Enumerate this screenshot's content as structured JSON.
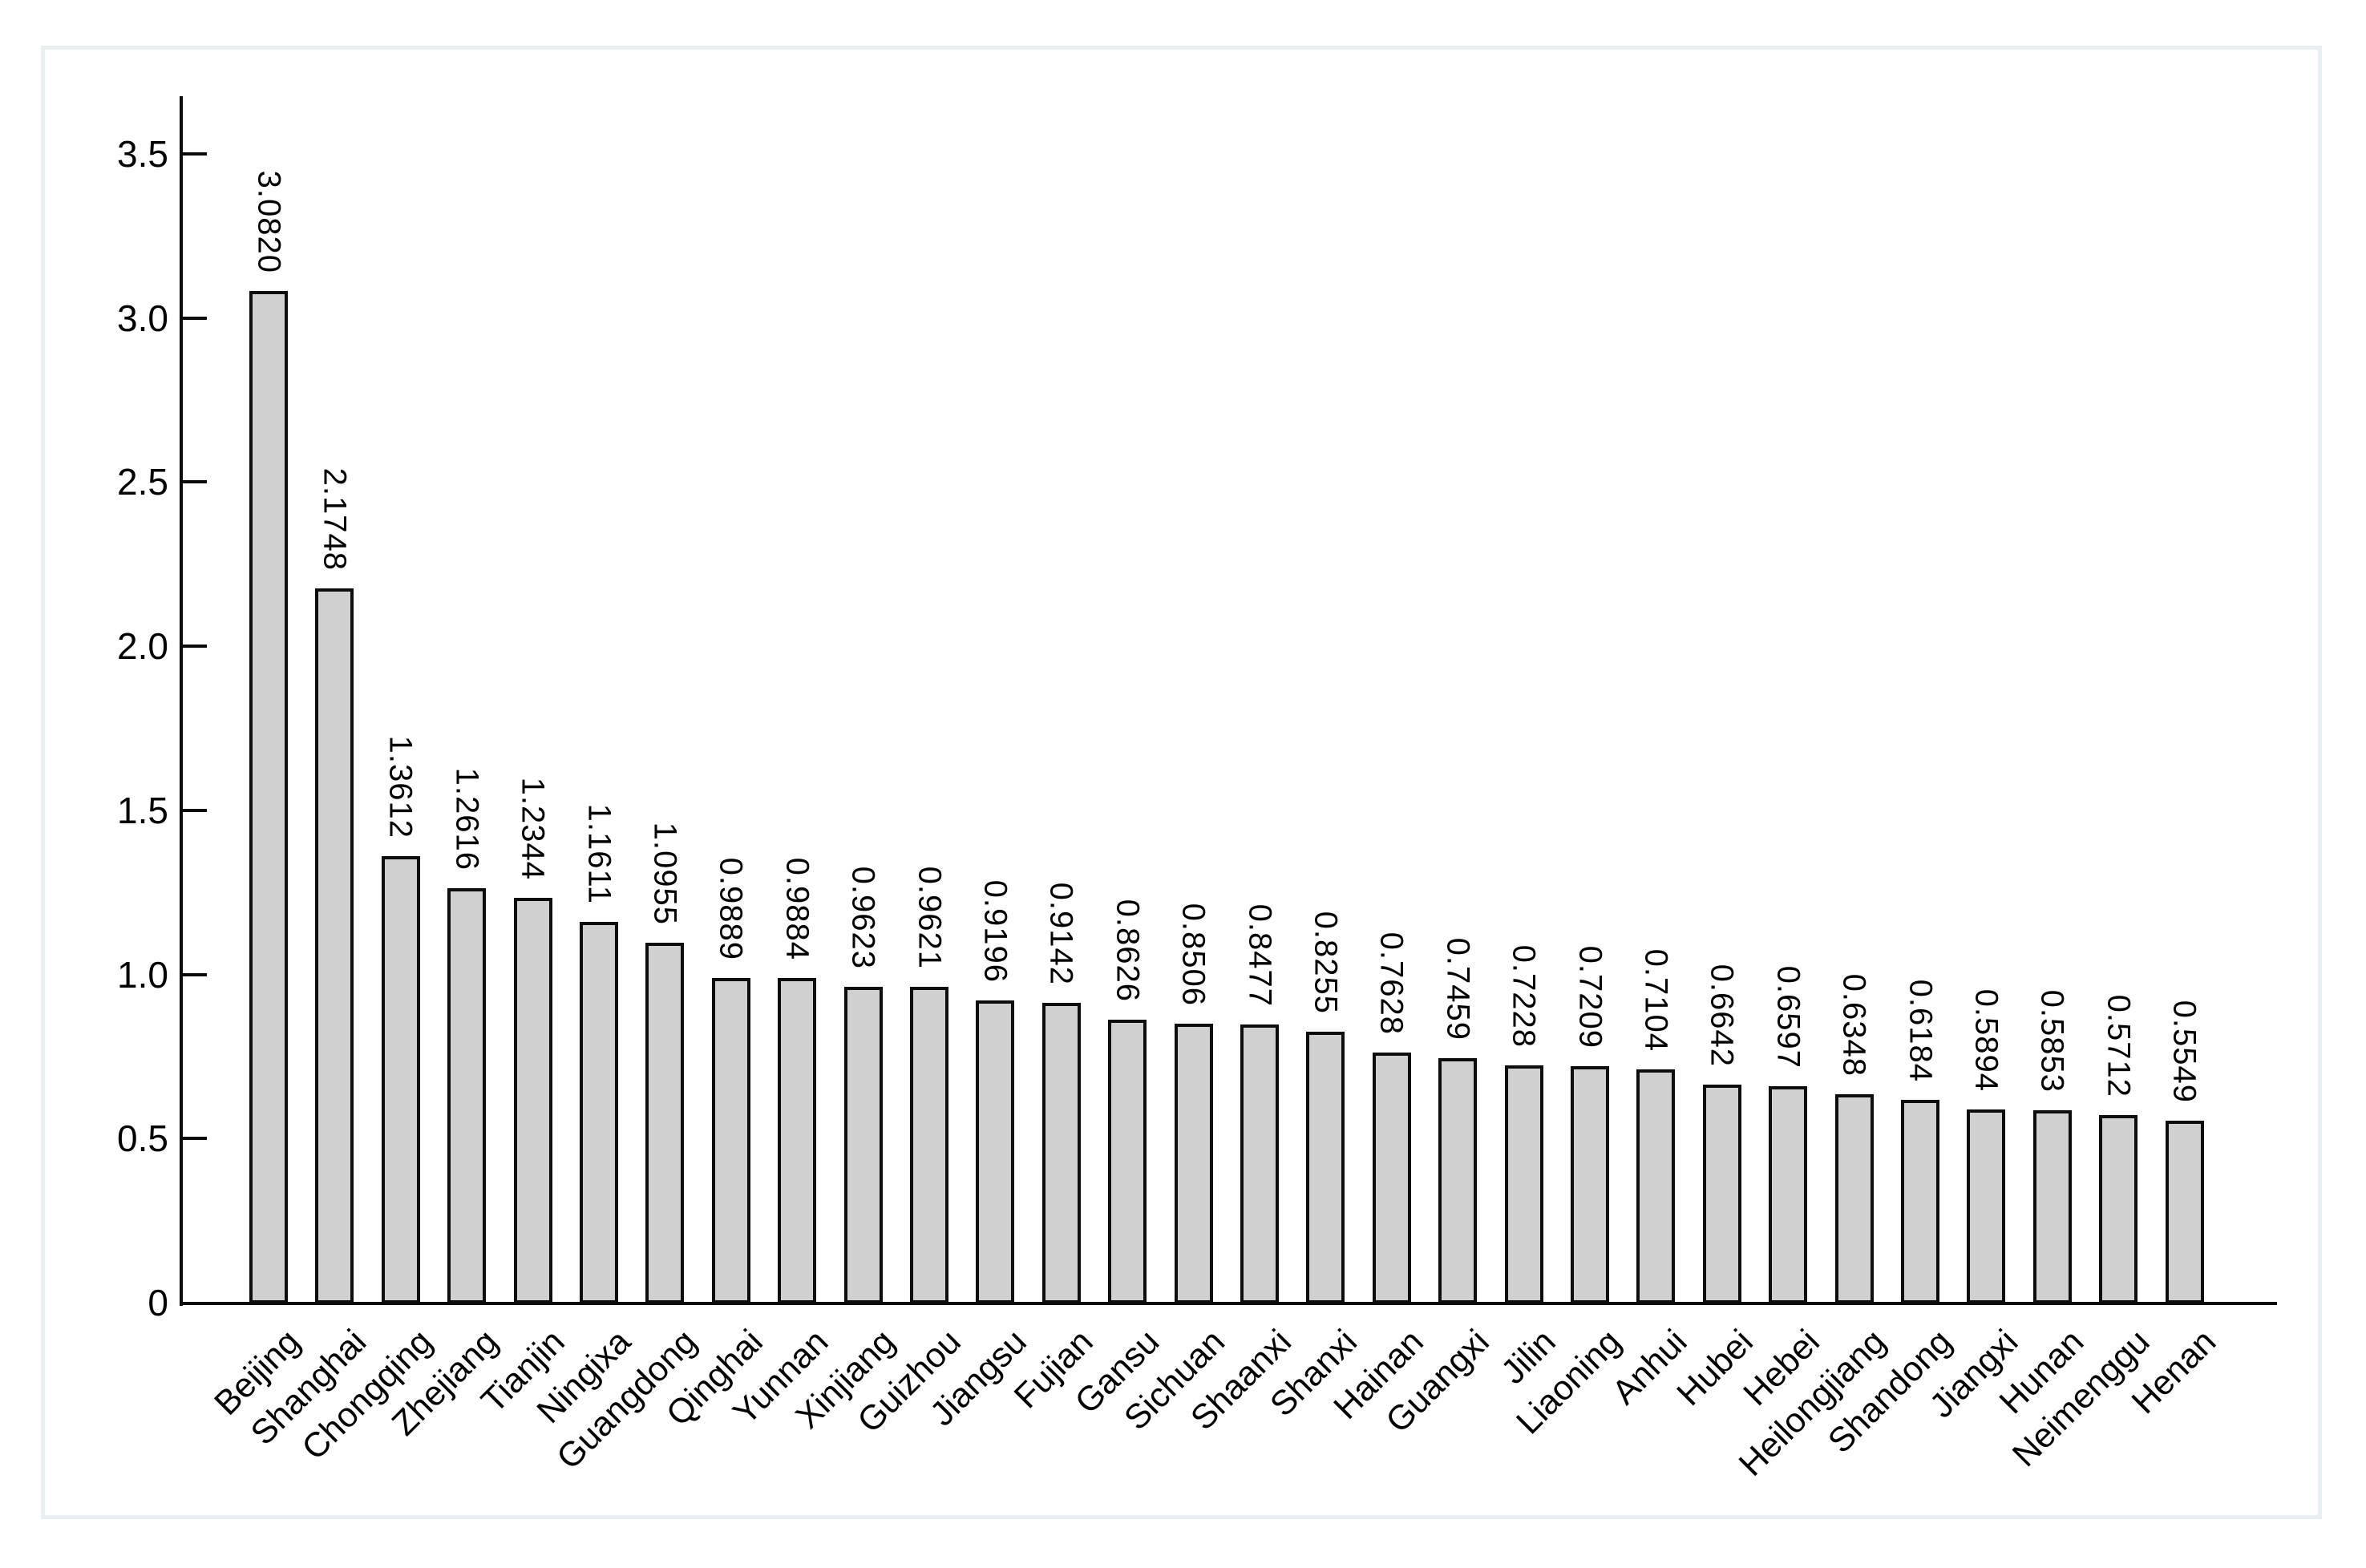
{
  "page": {
    "background": "#ffffff",
    "panel_background": "#ffffff",
    "panel_border_color": "#e6eff2"
  },
  "chart_data": {
    "type": "bar",
    "title": "",
    "xlabel": "",
    "ylabel": "",
    "categories": [
      "Beijing",
      "Shanghai",
      "Chongqing",
      "Zhejiang",
      "Tianjin",
      "Ningixa",
      "Guangdong",
      "Qinghai",
      "Yunnan",
      "Xinjiang",
      "Guizhou",
      "Jiangsu",
      "Fujian",
      "Gansu",
      "Sichuan",
      "Shaanxi",
      "Shanxi",
      "Hainan",
      "Guangxi",
      "Jilin",
      "Liaoning",
      "Anhui",
      "Hubei",
      "Hebei",
      "Heilongjiang",
      "Shandong",
      "Jiangxi",
      "Hunan",
      "Neimenggu",
      "Henan"
    ],
    "values": [
      3.082,
      2.1748,
      1.3612,
      1.2616,
      1.2344,
      1.1611,
      1.0955,
      0.9889,
      0.9884,
      0.9623,
      0.9621,
      0.9196,
      0.9142,
      0.8626,
      0.8506,
      0.8477,
      0.8255,
      0.7628,
      0.7459,
      0.7228,
      0.7209,
      0.7104,
      0.6642,
      0.6597,
      0.6348,
      0.6184,
      0.5894,
      0.5853,
      0.5712,
      0.5549
    ],
    "value_labels": [
      "3.0820",
      "2.1748",
      "1.3612",
      "1.2616",
      "1.2344",
      "1.1611",
      "1.0955",
      "0.9889",
      "0.9884",
      "0.9623",
      "0.9621",
      "0.9196",
      "0.9142",
      "0.8626",
      "0.8506",
      "0.8477",
      "0.8255",
      "0.7628",
      "0.7459",
      "0.7228",
      "0.7209",
      "0.7104",
      "0.6642",
      "0.6597",
      "0.6348",
      "0.6184",
      "0.5894",
      "0.5853",
      "0.5712",
      "0.5549"
    ],
    "value_label_rotation_deg": 90,
    "xtick_rotation_deg": 45,
    "ylim": [
      0,
      3.67
    ],
    "yticks": [
      0,
      0.5,
      1.0,
      1.5,
      2.0,
      2.5,
      3.0,
      3.5
    ],
    "ytick_labels": [
      "0",
      "0.5",
      "1.0",
      "1.5",
      "2.0",
      "2.5",
      "3.0",
      "3.5"
    ],
    "grid": false,
    "legend": null,
    "bar_fill": "#d0d0d0",
    "bar_stroke": "#0d0d0d",
    "axis_color": "#0a0a0a",
    "text_color": "#000000",
    "tick_direction": "in"
  }
}
